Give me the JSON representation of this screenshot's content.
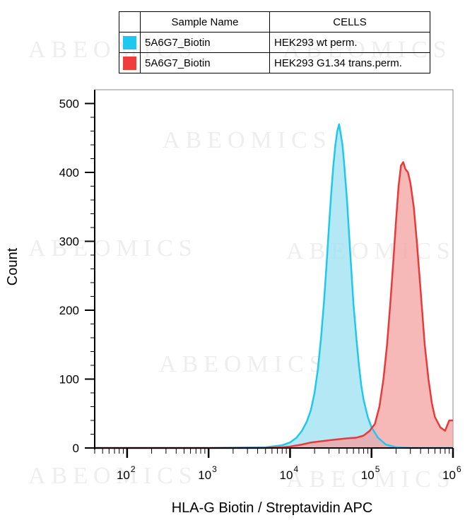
{
  "legend": {
    "header_name": "Sample Name",
    "header_cells": "CELLS",
    "rows": [
      {
        "name": "5A6G7_Biotin",
        "cells": "HEK293 wt perm.",
        "color": "#1ec8f0"
      },
      {
        "name": "5A6G7_Biotin",
        "cells": "HEK293 G1.34 trans.perm.",
        "color": "#f03c3c"
      }
    ]
  },
  "watermark": "ABEOMICS",
  "chart_data": {
    "type": "area",
    "xlabel": "HLA-G Biotin / Streptavidin APC",
    "ylabel": "Count",
    "x_scale": "log",
    "xlim": [
      40,
      1000000
    ],
    "ylim": [
      0,
      520
    ],
    "y_ticks": [
      0,
      100,
      200,
      300,
      400,
      500
    ],
    "x_ticks": [
      {
        "base": "10",
        "exp": "2"
      },
      {
        "base": "10",
        "exp": "3"
      },
      {
        "base": "10",
        "exp": "4"
      },
      {
        "base": "10",
        "exp": "5"
      },
      {
        "base": "10",
        "exp": "6"
      }
    ],
    "series": [
      {
        "name": "HEK293 wt perm.",
        "color": "#1ec8f0",
        "fill": "#9ce0f2",
        "points": [
          [
            40,
            0
          ],
          [
            1000,
            0
          ],
          [
            5000,
            1
          ],
          [
            8000,
            4
          ],
          [
            10000,
            8
          ],
          [
            12000,
            15
          ],
          [
            14000,
            25
          ],
          [
            16000,
            38
          ],
          [
            18000,
            55
          ],
          [
            20000,
            80
          ],
          [
            22000,
            115
          ],
          [
            24000,
            160
          ],
          [
            26000,
            210
          ],
          [
            28000,
            265
          ],
          [
            30000,
            320
          ],
          [
            32000,
            370
          ],
          [
            34000,
            410
          ],
          [
            36000,
            440
          ],
          [
            38000,
            460
          ],
          [
            40000,
            470
          ],
          [
            42000,
            455
          ],
          [
            44000,
            440
          ],
          [
            46000,
            415
          ],
          [
            50000,
            360
          ],
          [
            55000,
            280
          ],
          [
            60000,
            210
          ],
          [
            65000,
            160
          ],
          [
            70000,
            120
          ],
          [
            75000,
            90
          ],
          [
            80000,
            70
          ],
          [
            90000,
            45
          ],
          [
            100000,
            30
          ],
          [
            120000,
            15
          ],
          [
            150000,
            5
          ],
          [
            200000,
            1
          ],
          [
            300000,
            0
          ],
          [
            1000000,
            0
          ]
        ]
      },
      {
        "name": "HEK293 G1.34 trans.perm.",
        "color": "#e83a3a",
        "fill": "#f4a0a0",
        "points": [
          [
            40,
            0
          ],
          [
            5000,
            0
          ],
          [
            8000,
            1
          ],
          [
            10000,
            2
          ],
          [
            14000,
            5
          ],
          [
            18000,
            8
          ],
          [
            25000,
            10
          ],
          [
            35000,
            12
          ],
          [
            50000,
            14
          ],
          [
            65000,
            15
          ],
          [
            80000,
            18
          ],
          [
            95000,
            25
          ],
          [
            110000,
            35
          ],
          [
            125000,
            60
          ],
          [
            140000,
            100
          ],
          [
            155000,
            150
          ],
          [
            170000,
            210
          ],
          [
            185000,
            270
          ],
          [
            200000,
            330
          ],
          [
            215000,
            380
          ],
          [
            230000,
            410
          ],
          [
            245000,
            415
          ],
          [
            260000,
            405
          ],
          [
            280000,
            400
          ],
          [
            300000,
            385
          ],
          [
            330000,
            350
          ],
          [
            360000,
            300
          ],
          [
            400000,
            230
          ],
          [
            450000,
            150
          ],
          [
            500000,
            100
          ],
          [
            550000,
            65
          ],
          [
            600000,
            45
          ],
          [
            700000,
            30
          ],
          [
            800000,
            25
          ],
          [
            900000,
            40
          ],
          [
            1000000,
            40
          ]
        ]
      }
    ]
  }
}
